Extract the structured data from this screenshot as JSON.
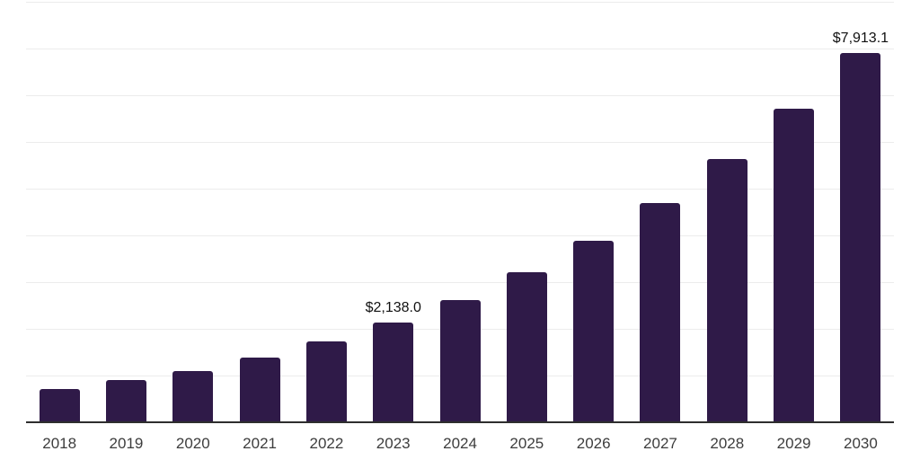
{
  "chart_data": {
    "type": "bar",
    "title": "",
    "xlabel": "",
    "ylabel": "",
    "categories": [
      "2018",
      "2019",
      "2020",
      "2021",
      "2022",
      "2023",
      "2024",
      "2025",
      "2026",
      "2027",
      "2028",
      "2029",
      "2030"
    ],
    "values": [
      712,
      904,
      1096,
      1385,
      1731,
      2138.0,
      2615,
      3212,
      3885,
      4692,
      5635,
      6712,
      7913.1
    ],
    "data_labels": [
      "",
      "",
      "",
      "",
      "",
      "$2,138.0",
      "",
      "",
      "",
      "",
      "",
      "",
      "$7,913.1"
    ],
    "ylim": [
      0,
      9000
    ],
    "gridline_step": 1000,
    "grid": true,
    "legend": false,
    "y_axis_labels_shown": false,
    "colors": {
      "bar": "#2f1a48",
      "gridline": "#ececec",
      "axis_line": "#2e2e2e",
      "tick_label": "#3d3d3d",
      "data_label": "#111111",
      "background": "#ffffff"
    }
  }
}
